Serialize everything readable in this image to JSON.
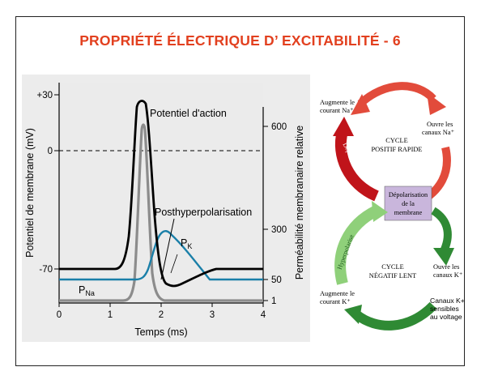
{
  "title": "PROPRIÉTÉ ÉLECTRIQUE D’ EXCITABILITÉ - 6",
  "graph": {
    "y_left_label": "Potentiel de membrane (mV)",
    "y_right_label": "Perméabilité membranaire relative",
    "x_label": "Temps (ms)",
    "left_ticks": [
      "+30",
      "0",
      "-70"
    ],
    "right_ticks": [
      "600",
      "300",
      "50",
      "1"
    ],
    "x_ticks": [
      "0",
      "1",
      "2",
      "3",
      "4"
    ],
    "label_action": "Potentiel d'action",
    "label_post": "Posthyperpolarisation",
    "label_pk": "P",
    "label_pk_sub": "K",
    "label_pna": "P",
    "label_pna_sub": "Na",
    "colors": {
      "action": "#000000",
      "pna": "#8c8c8c",
      "pk": "#1a7fa8",
      "bg": "#ececec"
    }
  },
  "cycle": {
    "top_left_1": "Augmente le",
    "top_left_2": "courant Na⁺",
    "top_right_1": "Ouvre les",
    "top_right_2": "canaux Na⁺",
    "top_center_1": "CYCLE",
    "top_center_2": "POSITIF RAPIDE",
    "arrow_left_top": "Dépolarise plus",
    "center_1": "Dépolarisation",
    "center_2": "de la",
    "center_3": "membrane",
    "arrow_left_bottom": "Hyperpolarise",
    "bottom_center_1": "CYCLE",
    "bottom_center_2": "NÉGATIF LENT",
    "bottom_right_1": "Ouvre les",
    "bottom_right_2": "canaux K⁺",
    "bottom_left_1": "Augmente le",
    "bottom_left_2": "courant K⁺",
    "note_1": "Canaux K+",
    "note_2": "sensibles",
    "note_3": "au voltage",
    "colors": {
      "red": "#e24b3b",
      "green": "#2f8a34",
      "light_green": "#8fd07a",
      "box": "#c9b6dc"
    }
  }
}
